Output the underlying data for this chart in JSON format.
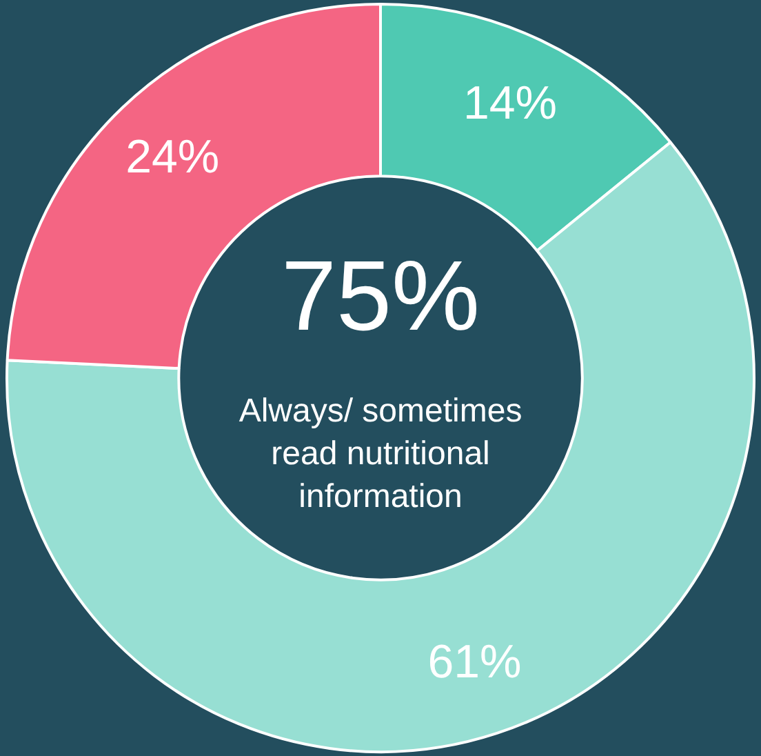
{
  "chart_data": {
    "type": "donut",
    "categories": [
      null,
      null,
      null
    ],
    "values": [
      14,
      61,
      24
    ],
    "colors": [
      "#4fc9b2",
      "#97dfd3",
      "#f46583"
    ],
    "value_labels": [
      "14%",
      "61%",
      "24%"
    ],
    "legend": false,
    "annotations": [
      "75%",
      "Always/ sometimes read nutritional information"
    ]
  }
}
